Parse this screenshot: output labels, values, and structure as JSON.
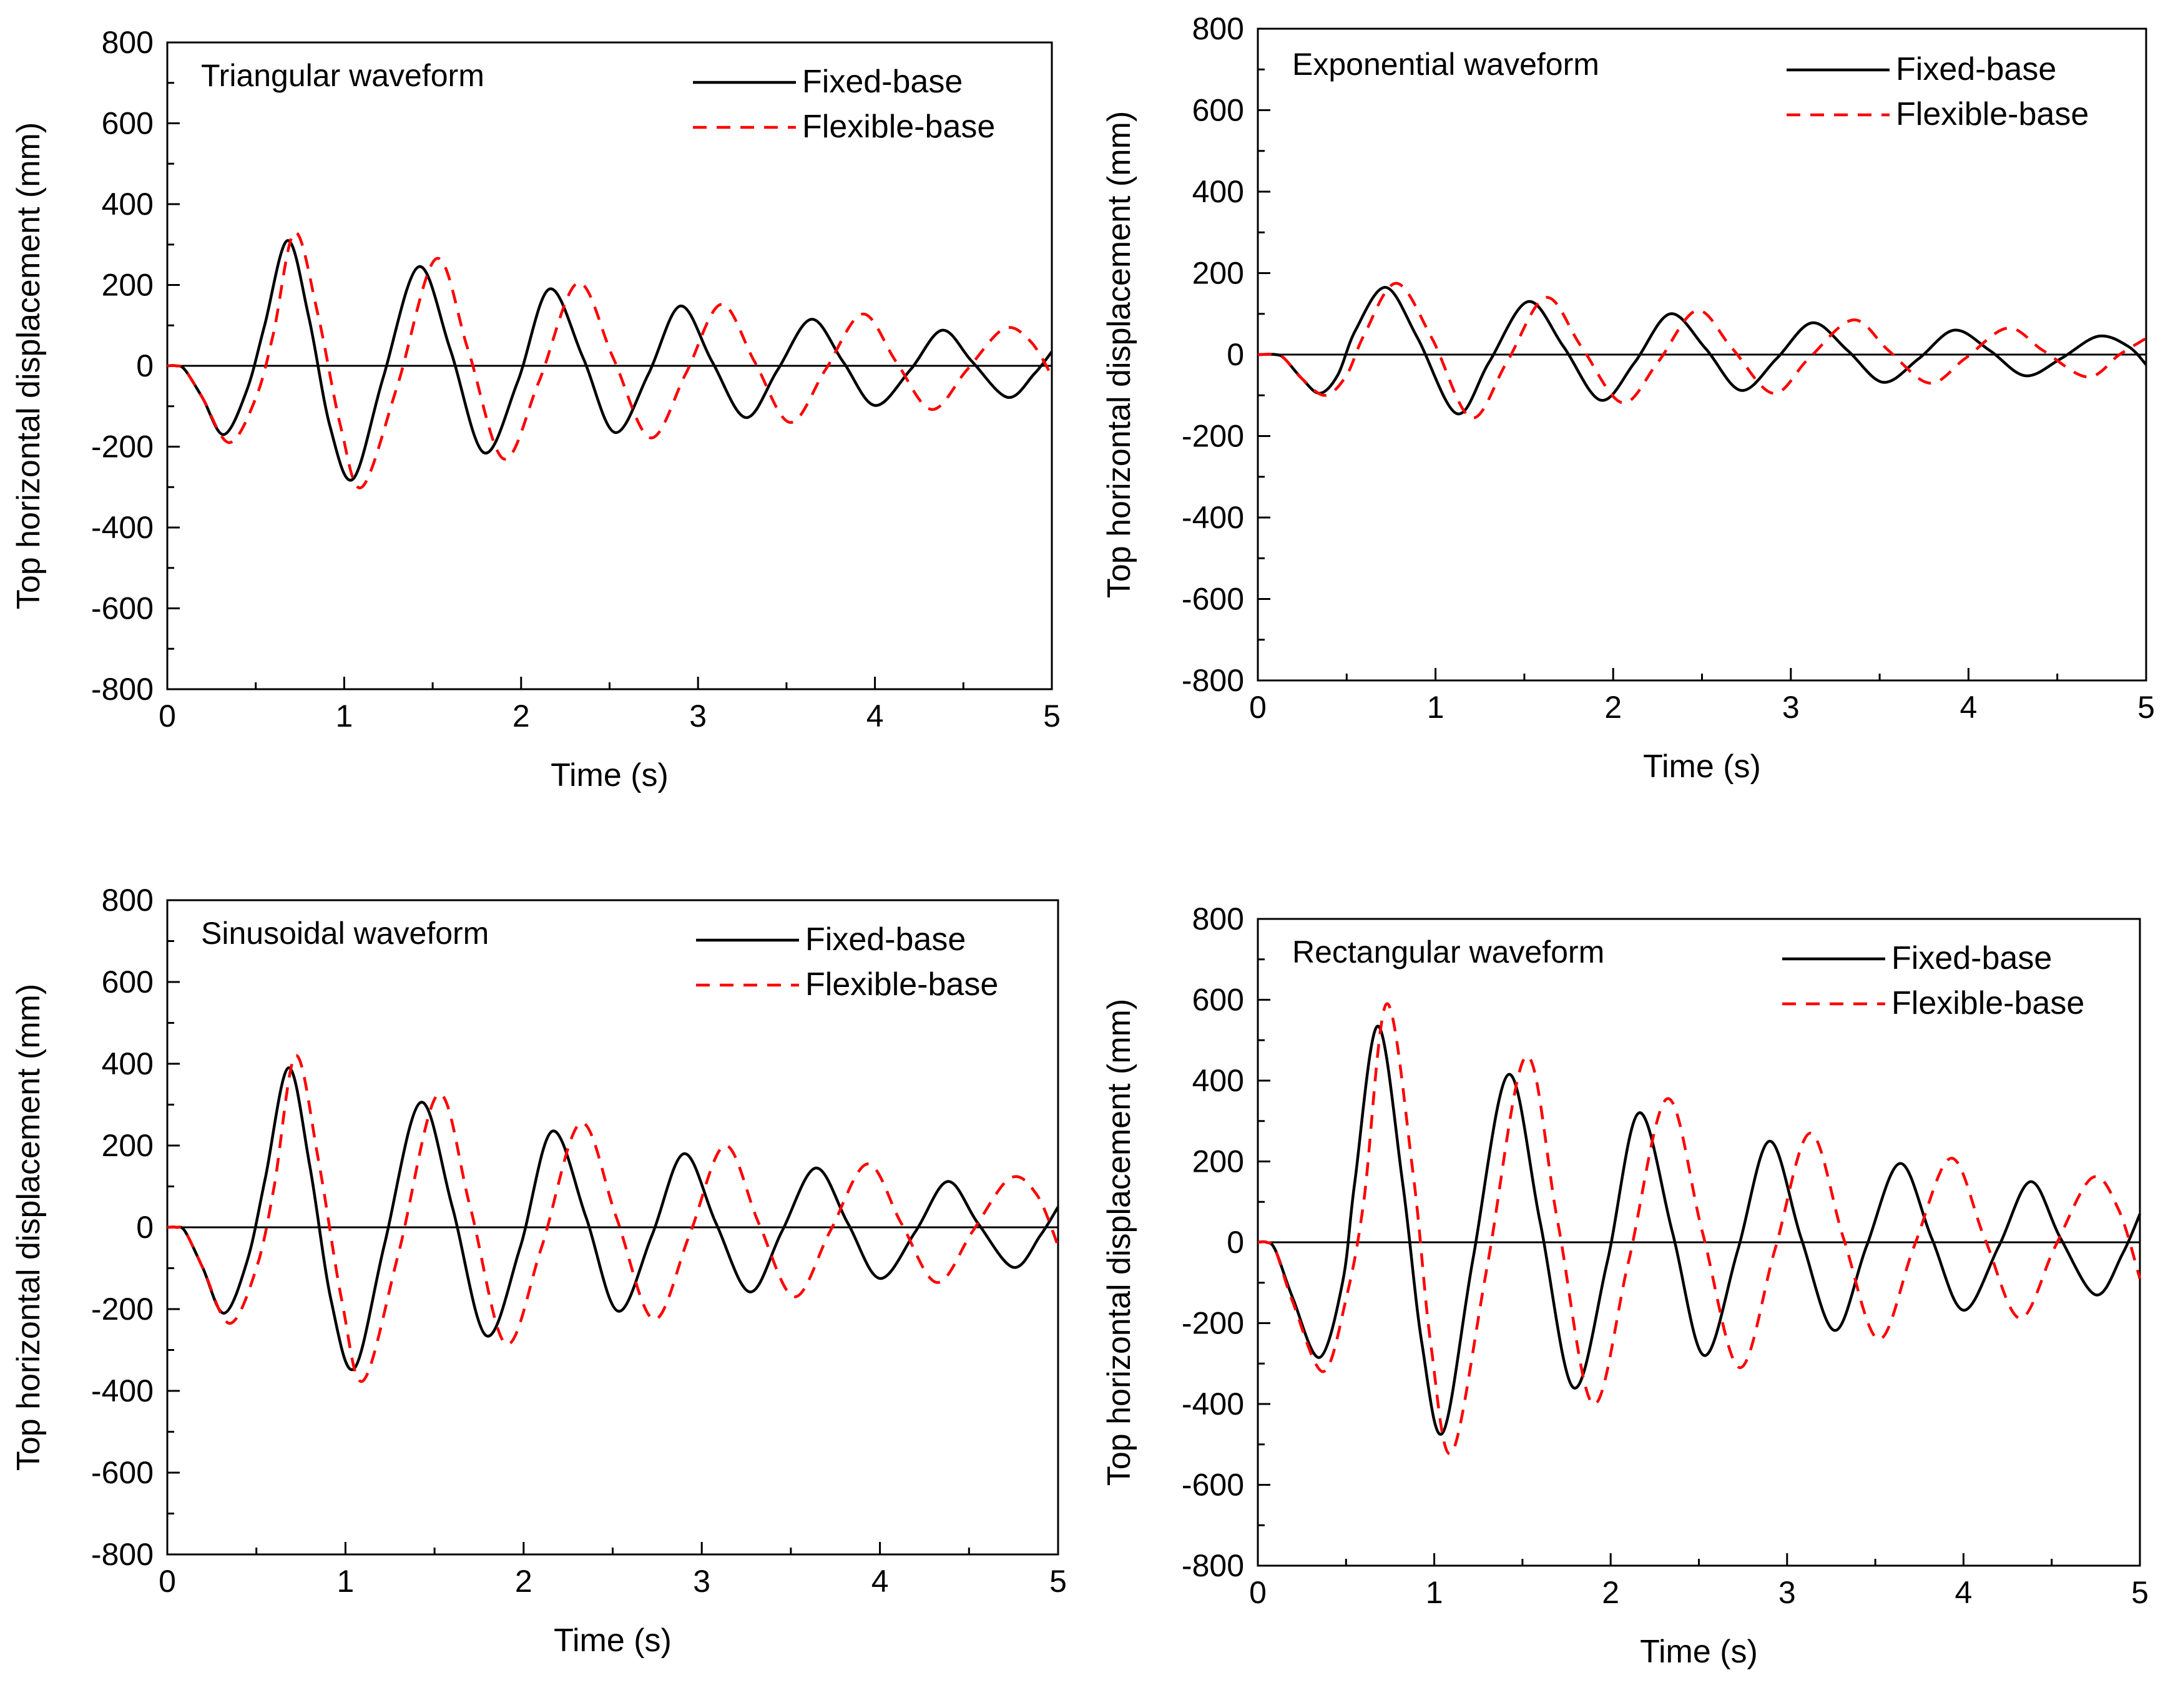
{
  "chart_data": [
    {
      "type": "line",
      "title": "Triangular waveform",
      "xlabel": "Time (s)",
      "ylabel": "Top horizontal displacement (mm)",
      "xlim": [
        0,
        5
      ],
      "ylim": [
        -800,
        800
      ],
      "xticks": [
        "0",
        "1",
        "2",
        "3",
        "4",
        "5"
      ],
      "yticks": [
        "800",
        "600",
        "400",
        "200",
        "0",
        "-200",
        "-400",
        "-600",
        "-800"
      ],
      "legend_position": "top-right",
      "series": [
        {
          "name": "Fixed-base",
          "style": "solid",
          "color": "#000000",
          "x": [
            0,
            0.05,
            0.1,
            0.2,
            0.32,
            0.45,
            0.55,
            0.68,
            0.8,
            0.92,
            1.05,
            1.22,
            1.42,
            1.6,
            1.79,
            1.98,
            2.16,
            2.35,
            2.53,
            2.72,
            2.9,
            3.08,
            3.27,
            3.45,
            3.64,
            3.82,
            4.0,
            4.2,
            4.38,
            4.55,
            4.75,
            4.9,
            5.0
          ],
          "y": [
            0,
            0,
            -10,
            -80,
            -170,
            -60,
            100,
            310,
            120,
            -150,
            -280,
            -30,
            245,
            40,
            -215,
            -40,
            190,
            20,
            -165,
            -20,
            148,
            10,
            -128,
            -10,
            115,
            10,
            -98,
            -10,
            88,
            10,
            -78,
            -20,
            35
          ]
        },
        {
          "name": "Flexible-base",
          "style": "dashed",
          "color": "#ff0000",
          "x": [
            0,
            0.05,
            0.1,
            0.2,
            0.35,
            0.5,
            0.6,
            0.72,
            0.85,
            0.98,
            1.1,
            1.3,
            1.52,
            1.7,
            1.9,
            2.1,
            2.32,
            2.52,
            2.73,
            2.93,
            3.13,
            3.32,
            3.52,
            3.72,
            3.93,
            4.12,
            4.32,
            4.52,
            4.73,
            4.88,
            5.0
          ],
          "y": [
            0,
            0,
            -10,
            -80,
            -190,
            -80,
            80,
            330,
            130,
            -150,
            -300,
            -50,
            265,
            40,
            -230,
            -40,
            205,
            20,
            -178,
            -20,
            152,
            10,
            -140,
            -10,
            128,
            10,
            -108,
            -10,
            92,
            60,
            -25
          ]
        }
      ]
    },
    {
      "type": "line",
      "title": "Exponential waveform",
      "xlabel": "Time (s)",
      "ylabel": "Top horizontal displacement (mm)",
      "xlim": [
        0,
        5
      ],
      "ylim": [
        -800,
        800
      ],
      "xticks": [
        "0",
        "1",
        "2",
        "3",
        "4",
        "5"
      ],
      "yticks": [
        "800",
        "600",
        "400",
        "200",
        "0",
        "-200",
        "-400",
        "-600",
        "-800"
      ],
      "legend_position": "top-right",
      "series": [
        {
          "name": "Fixed-base",
          "style": "solid",
          "color": "#000000",
          "x": [
            0,
            0.1,
            0.15,
            0.25,
            0.35,
            0.45,
            0.55,
            0.72,
            0.9,
            1.12,
            1.3,
            1.52,
            1.72,
            1.93,
            2.12,
            2.32,
            2.52,
            2.72,
            2.92,
            3.12,
            3.32,
            3.52,
            3.72,
            3.92,
            4.12,
            4.32,
            4.52,
            4.73,
            4.9,
            5.0
          ],
          "y": [
            0,
            0,
            -10,
            -60,
            -95,
            -50,
            60,
            165,
            40,
            -145,
            -20,
            130,
            20,
            -112,
            -20,
            100,
            15,
            -88,
            -10,
            78,
            10,
            -68,
            -10,
            60,
            10,
            -52,
            -10,
            45,
            20,
            -25
          ]
        },
        {
          "name": "Flexible-base",
          "style": "dashed",
          "color": "#ff0000",
          "x": [
            0,
            0.1,
            0.15,
            0.25,
            0.38,
            0.5,
            0.6,
            0.78,
            0.98,
            1.2,
            1.4,
            1.62,
            1.82,
            2.05,
            2.25,
            2.47,
            2.67,
            2.9,
            3.1,
            3.35,
            3.55,
            3.78,
            3.98,
            4.22,
            4.42,
            4.67,
            4.85,
            5.0
          ],
          "y": [
            0,
            0,
            -10,
            -60,
            -100,
            -50,
            50,
            175,
            40,
            -155,
            -20,
            140,
            20,
            -118,
            -20,
            108,
            15,
            -95,
            -10,
            85,
            10,
            -70,
            -10,
            65,
            10,
            -55,
            0,
            40
          ]
        }
      ]
    },
    {
      "type": "line",
      "title": "Sinusoidal waveform",
      "xlabel": "Time (s)",
      "ylabel": "Top horizontal displacement (mm)",
      "xlim": [
        0,
        5
      ],
      "ylim": [
        -800,
        800
      ],
      "xticks": [
        "0",
        "1",
        "2",
        "3",
        "4",
        "5"
      ],
      "yticks": [
        "800",
        "600",
        "400",
        "200",
        "0",
        "-200",
        "-400",
        "-600",
        "-800"
      ],
      "legend_position": "top-right",
      "series": [
        {
          "name": "Fixed-base",
          "style": "solid",
          "color": "#000000",
          "x": [
            0,
            0.05,
            0.1,
            0.2,
            0.32,
            0.45,
            0.55,
            0.68,
            0.8,
            0.92,
            1.05,
            1.22,
            1.42,
            1.6,
            1.79,
            1.98,
            2.16,
            2.35,
            2.53,
            2.72,
            2.9,
            3.08,
            3.27,
            3.45,
            3.64,
            3.82,
            4.0,
            4.2,
            4.38,
            4.55,
            4.75,
            4.9,
            5.0
          ],
          "y": [
            0,
            0,
            -10,
            -100,
            -210,
            -80,
            120,
            390,
            150,
            -180,
            -345,
            -40,
            305,
            50,
            -265,
            -50,
            235,
            25,
            -205,
            -20,
            180,
            10,
            -158,
            -10,
            145,
            10,
            -125,
            -10,
            112,
            10,
            -98,
            -20,
            50
          ]
        },
        {
          "name": "Flexible-base",
          "style": "dashed",
          "color": "#ff0000",
          "x": [
            0,
            0.05,
            0.1,
            0.2,
            0.35,
            0.5,
            0.6,
            0.72,
            0.85,
            0.98,
            1.1,
            1.3,
            1.52,
            1.7,
            1.9,
            2.1,
            2.32,
            2.52,
            2.73,
            2.93,
            3.13,
            3.32,
            3.52,
            3.72,
            3.93,
            4.12,
            4.32,
            4.52,
            4.73,
            4.88,
            5.0
          ],
          "y": [
            0,
            0,
            -10,
            -100,
            -235,
            -100,
            100,
            420,
            160,
            -180,
            -375,
            -60,
            325,
            50,
            -285,
            -50,
            255,
            25,
            -225,
            -20,
            200,
            10,
            -170,
            -10,
            155,
            10,
            -135,
            -10,
            120,
            80,
            -45
          ]
        }
      ]
    },
    {
      "type": "line",
      "title": "Rectangular waveform",
      "xlabel": "Time (s)",
      "ylabel": "Top horizontal displacement (mm)",
      "xlim": [
        0,
        5
      ],
      "ylim": [
        -800,
        800
      ],
      "xticks": [
        "0",
        "1",
        "2",
        "3",
        "4",
        "5"
      ],
      "yticks": [
        "800",
        "600",
        "400",
        "200",
        "0",
        "-200",
        "-400",
        "-600",
        "-800"
      ],
      "legend_position": "top-right",
      "series": [
        {
          "name": "Fixed-base",
          "style": "solid",
          "color": "#000000",
          "x": [
            0,
            0.05,
            0.1,
            0.2,
            0.35,
            0.48,
            0.55,
            0.68,
            0.82,
            0.93,
            1.05,
            1.22,
            1.42,
            1.6,
            1.79,
            1.98,
            2.16,
            2.35,
            2.53,
            2.72,
            2.9,
            3.08,
            3.27,
            3.45,
            3.64,
            3.82,
            4.0,
            4.2,
            4.38,
            4.55,
            4.75,
            4.9,
            5.0
          ],
          "y": [
            0,
            0,
            -20,
            -140,
            -285,
            -100,
            150,
            535,
            150,
            -250,
            -470,
            -40,
            415,
            50,
            -360,
            -50,
            320,
            25,
            -280,
            -20,
            250,
            10,
            -218,
            -10,
            195,
            10,
            -168,
            -10,
            150,
            10,
            -130,
            -30,
            70
          ]
        },
        {
          "name": "Flexible-base",
          "style": "dashed",
          "color": "#ff0000",
          "x": [
            0,
            0.05,
            0.1,
            0.2,
            0.37,
            0.5,
            0.6,
            0.73,
            0.88,
            0.98,
            1.1,
            1.3,
            1.52,
            1.7,
            1.9,
            2.1,
            2.32,
            2.52,
            2.73,
            2.93,
            3.13,
            3.32,
            3.52,
            3.72,
            3.93,
            4.12,
            4.32,
            4.52,
            4.73,
            4.88,
            5.0
          ],
          "y": [
            0,
            0,
            -20,
            -150,
            -320,
            -140,
            100,
            590,
            170,
            -250,
            -520,
            -60,
            460,
            50,
            -400,
            -50,
            355,
            25,
            -310,
            -20,
            270,
            10,
            -240,
            -10,
            208,
            10,
            -188,
            -10,
            160,
            80,
            -90
          ]
        }
      ]
    }
  ]
}
